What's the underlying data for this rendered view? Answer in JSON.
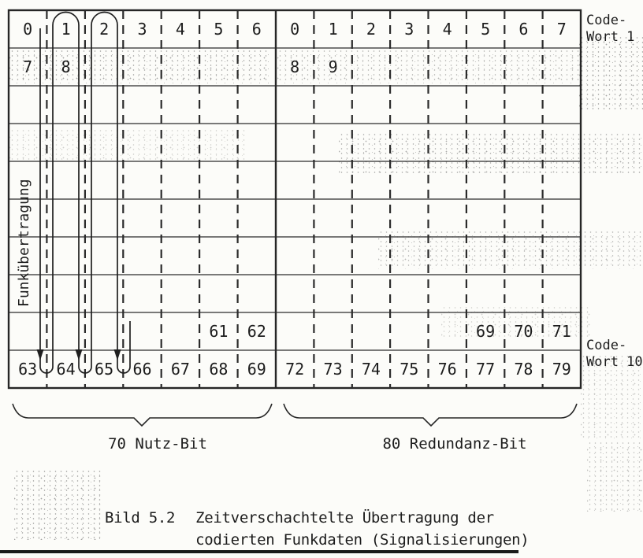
{
  "figure": {
    "caption": {
      "label": "Bild 5.2",
      "line1": "Zeitverschachtelte Übertragung der",
      "line2": "codierten Funkdaten (Signalisierungen)"
    }
  },
  "diagram": {
    "transmission_label": "Funkübertragung",
    "codeword_top": {
      "line1": "Code-",
      "line2": "Wort 1"
    },
    "codeword_bottom": {
      "line1": "Code-",
      "line2": "Wort 10"
    },
    "brace_left_label": "70 Nutz-Bit",
    "brace_right_label": "80 Redundanz-Bit",
    "colors": {
      "ink": "#262626",
      "paper": "#fcfcf9"
    },
    "grid": {
      "rows": 10,
      "blocks": [
        {
          "name": "Nutz-Bit",
          "cols": 7
        },
        {
          "name": "Redundanz-Bit",
          "cols": 8
        }
      ],
      "cells": [
        {
          "block": "left",
          "row": 0,
          "col": 0,
          "text": "0"
        },
        {
          "block": "left",
          "row": 0,
          "col": 1,
          "text": "1"
        },
        {
          "block": "left",
          "row": 0,
          "col": 2,
          "text": "2"
        },
        {
          "block": "left",
          "row": 0,
          "col": 3,
          "text": "3"
        },
        {
          "block": "left",
          "row": 0,
          "col": 4,
          "text": "4"
        },
        {
          "block": "left",
          "row": 0,
          "col": 5,
          "text": "5"
        },
        {
          "block": "left",
          "row": 0,
          "col": 6,
          "text": "6"
        },
        {
          "block": "right",
          "row": 0,
          "col": 0,
          "text": "0"
        },
        {
          "block": "right",
          "row": 0,
          "col": 1,
          "text": "1"
        },
        {
          "block": "right",
          "row": 0,
          "col": 2,
          "text": "2"
        },
        {
          "block": "right",
          "row": 0,
          "col": 3,
          "text": "3"
        },
        {
          "block": "right",
          "row": 0,
          "col": 4,
          "text": "4"
        },
        {
          "block": "right",
          "row": 0,
          "col": 5,
          "text": "5"
        },
        {
          "block": "right",
          "row": 0,
          "col": 6,
          "text": "6"
        },
        {
          "block": "right",
          "row": 0,
          "col": 7,
          "text": "7"
        },
        {
          "block": "left",
          "row": 1,
          "col": 0,
          "text": "7"
        },
        {
          "block": "left",
          "row": 1,
          "col": 1,
          "text": "8"
        },
        {
          "block": "right",
          "row": 1,
          "col": 0,
          "text": "8"
        },
        {
          "block": "right",
          "row": 1,
          "col": 1,
          "text": "9"
        },
        {
          "block": "left",
          "row": 8,
          "col": 5,
          "text": "61"
        },
        {
          "block": "left",
          "row": 8,
          "col": 6,
          "text": "62"
        },
        {
          "block": "right",
          "row": 8,
          "col": 5,
          "text": "69"
        },
        {
          "block": "right",
          "row": 8,
          "col": 6,
          "text": "70"
        },
        {
          "block": "right",
          "row": 8,
          "col": 7,
          "text": "71"
        },
        {
          "block": "left",
          "row": 9,
          "col": 0,
          "text": "63"
        },
        {
          "block": "left",
          "row": 9,
          "col": 1,
          "text": "64"
        },
        {
          "block": "left",
          "row": 9,
          "col": 2,
          "text": "65"
        },
        {
          "block": "left",
          "row": 9,
          "col": 3,
          "text": "66"
        },
        {
          "block": "left",
          "row": 9,
          "col": 4,
          "text": "67"
        },
        {
          "block": "left",
          "row": 9,
          "col": 5,
          "text": "68"
        },
        {
          "block": "left",
          "row": 9,
          "col": 6,
          "text": "69"
        },
        {
          "block": "right",
          "row": 9,
          "col": 0,
          "text": "72"
        },
        {
          "block": "right",
          "row": 9,
          "col": 1,
          "text": "73"
        },
        {
          "block": "right",
          "row": 9,
          "col": 2,
          "text": "74"
        },
        {
          "block": "right",
          "row": 9,
          "col": 3,
          "text": "75"
        },
        {
          "block": "right",
          "row": 9,
          "col": 4,
          "text": "76"
        },
        {
          "block": "right",
          "row": 9,
          "col": 5,
          "text": "77"
        },
        {
          "block": "right",
          "row": 9,
          "col": 6,
          "text": "78"
        },
        {
          "block": "right",
          "row": 9,
          "col": 7,
          "text": "79"
        }
      ]
    }
  }
}
